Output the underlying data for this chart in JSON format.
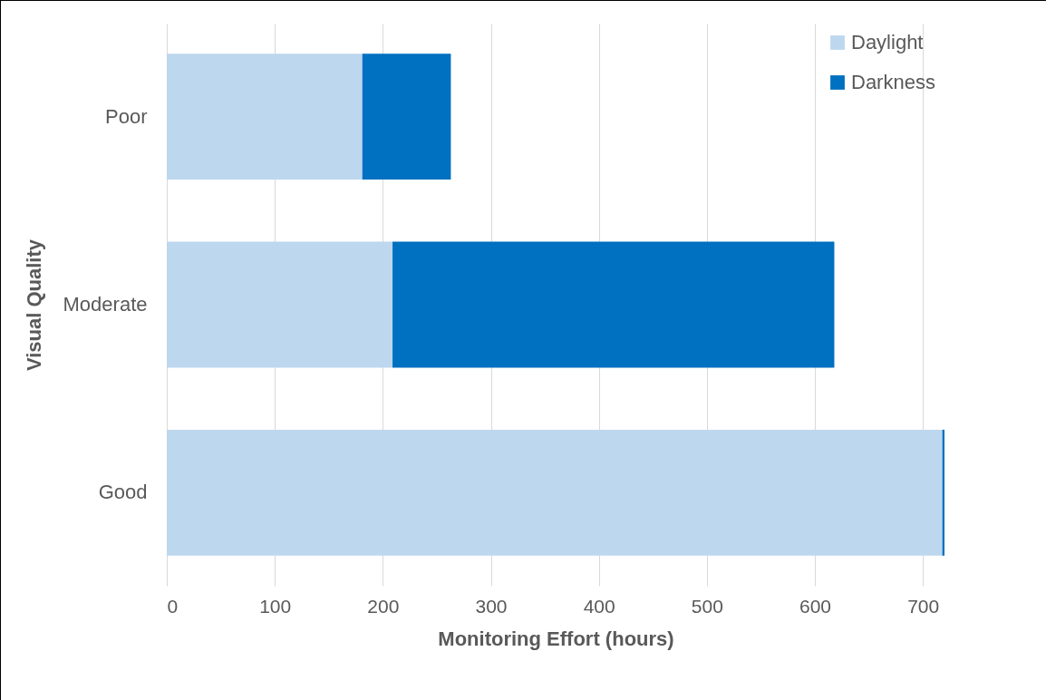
{
  "chart_data": {
    "type": "bar",
    "orientation": "horizontal",
    "stacked": true,
    "xlabel": "Monitoring Effort (hours)",
    "ylabel": "Visual Quality",
    "categories": [
      "Poor",
      "Moderate",
      "Good"
    ],
    "series": [
      {
        "name": "Daylight",
        "color": "#bdd7ee",
        "values": [
          181,
          209,
          718
        ]
      },
      {
        "name": "Darkness",
        "color": "#0070c0",
        "values": [
          82,
          409,
          2
        ]
      }
    ],
    "xlim": [
      0,
      720
    ],
    "xticks": [
      0,
      100,
      200,
      300,
      400,
      500,
      600,
      700
    ],
    "grid": "x",
    "legend": "top right"
  }
}
